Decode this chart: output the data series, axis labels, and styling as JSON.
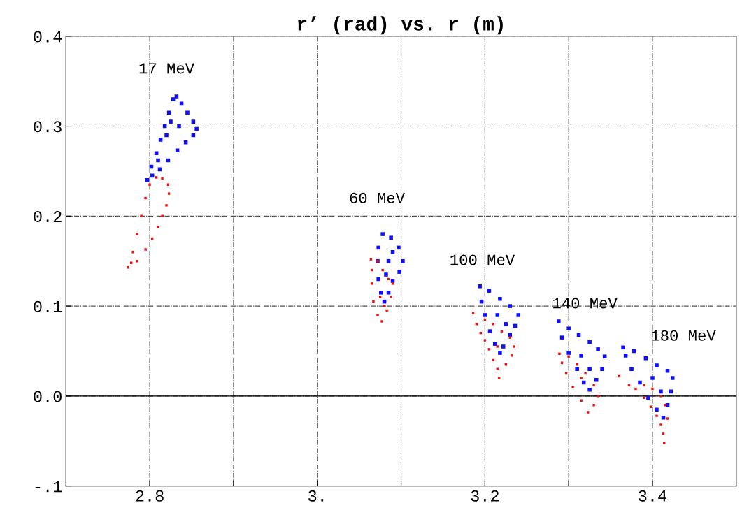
{
  "chart_data": {
    "type": "scatter",
    "title": "r’ (rad) vs. r (m)",
    "xlim": [
      2.7,
      3.5
    ],
    "ylim": [
      -0.1,
      0.4
    ],
    "xticks": [
      2.8,
      {
        "value": 2.9,
        "label": null
      },
      {
        "value": 3.0,
        "label": "3."
      },
      {
        "value": 3.1,
        "label": null
      },
      3.2,
      {
        "value": 3.3,
        "label": null
      },
      3.4
    ],
    "yticks": [
      {
        "value": -0.1,
        "label": "-.1"
      },
      {
        "value": 0.0,
        "label": "0.0"
      },
      0.1,
      0.2,
      0.3,
      0.4
    ],
    "grid": true,
    "marker": "square",
    "ref_lines": [
      {
        "axis": "y",
        "value": 0,
        "color": "#000000",
        "line_style": "solid"
      }
    ],
    "annotations": [
      "17 MeV",
      "60 MeV",
      "100 MeV",
      "140 MeV",
      "180 MeV"
    ],
    "series": [
      {
        "color": "#1010f0",
        "x": [
          2.797,
          2.802,
          2.808,
          2.813,
          2.818,
          2.823,
          2.828,
          2.832,
          2.838,
          2.845,
          2.852,
          2.856,
          2.852,
          2.843,
          2.833,
          2.822,
          2.812,
          2.803,
          2.825,
          2.835,
          2.82,
          2.81,
          3.078,
          3.088,
          3.097,
          3.102,
          3.098,
          3.09,
          3.085,
          3.08,
          3.076,
          3.073,
          3.072,
          3.073,
          3.085,
          3.09,
          3.082,
          3.194,
          3.205,
          3.218,
          3.23,
          3.24,
          3.236,
          3.23,
          3.222,
          3.218,
          3.212,
          3.206,
          3.2,
          3.196,
          3.215,
          3.225,
          3.288,
          3.3,
          3.312,
          3.325,
          3.335,
          3.343,
          3.34,
          3.333,
          3.325,
          3.318,
          3.31,
          3.3,
          3.292,
          3.315,
          3.325,
          3.365,
          3.378,
          3.392,
          3.405,
          3.418,
          3.424,
          3.422,
          3.418,
          3.413,
          3.405,
          3.395,
          3.385,
          3.375,
          3.368,
          3.4,
          3.41
        ],
        "values": [
          0.24,
          0.255,
          0.27,
          0.285,
          0.3,
          0.315,
          0.33,
          0.333,
          0.325,
          0.315,
          0.305,
          0.297,
          0.29,
          0.282,
          0.273,
          0.262,
          0.252,
          0.245,
          0.305,
          0.3,
          0.29,
          0.262,
          0.18,
          0.176,
          0.165,
          0.15,
          0.138,
          0.128,
          0.115,
          0.105,
          0.115,
          0.13,
          0.15,
          0.165,
          0.15,
          0.16,
          0.135,
          0.122,
          0.117,
          0.108,
          0.1,
          0.09,
          0.078,
          0.068,
          0.055,
          0.048,
          0.058,
          0.072,
          0.09,
          0.105,
          0.09,
          0.08,
          0.083,
          0.075,
          0.068,
          0.06,
          0.052,
          0.044,
          0.03,
          0.018,
          0.007,
          0.015,
          0.03,
          0.048,
          0.065,
          0.045,
          0.03,
          0.054,
          0.05,
          0.042,
          0.034,
          0.028,
          0.02,
          0.005,
          -0.01,
          -0.024,
          -0.015,
          -0.002,
          0.015,
          0.03,
          0.045,
          0.02,
          0.005
        ]
      },
      {
        "color": "#f01010",
        "x": [
          2.774,
          2.78,
          2.785,
          2.79,
          2.795,
          2.8,
          2.808,
          2.815,
          2.822,
          2.823,
          2.82,
          2.815,
          2.81,
          2.803,
          2.795,
          2.785,
          2.778,
          3.064,
          3.072,
          3.078,
          3.085,
          3.09,
          3.088,
          3.083,
          3.077,
          3.072,
          3.067,
          3.065,
          3.065,
          3.075,
          3.08,
          3.186,
          3.19,
          3.195,
          3.2,
          3.205,
          3.21,
          3.215,
          3.217,
          3.225,
          3.232,
          3.235,
          3.23,
          3.22,
          3.21,
          3.2,
          3.215,
          3.289,
          3.3,
          3.31,
          3.32,
          3.33,
          3.335,
          3.33,
          3.323,
          3.315,
          3.305,
          3.297,
          3.292,
          3.315,
          3.36,
          3.372,
          3.38,
          3.39,
          3.398,
          3.405,
          3.41,
          3.413,
          3.414,
          3.418,
          3.415,
          3.41,
          3.4,
          3.39
        ],
        "values": [
          0.143,
          0.16,
          0.18,
          0.2,
          0.22,
          0.235,
          0.243,
          0.242,
          0.235,
          0.225,
          0.212,
          0.2,
          0.188,
          0.175,
          0.163,
          0.15,
          0.148,
          0.152,
          0.15,
          0.14,
          0.13,
          0.125,
          0.11,
          0.095,
          0.083,
          0.09,
          0.105,
          0.125,
          0.14,
          0.11,
          0.1,
          0.092,
          0.08,
          0.07,
          0.062,
          0.052,
          0.04,
          0.03,
          0.02,
          0.035,
          0.045,
          0.055,
          0.065,
          0.072,
          0.08,
          0.085,
          0.055,
          0.047,
          0.044,
          0.035,
          0.025,
          0.012,
          0.0,
          -0.01,
          -0.018,
          -0.005,
          0.01,
          0.025,
          0.037,
          0.02,
          0.022,
          0.012,
          0.008,
          -0.002,
          -0.012,
          -0.022,
          -0.032,
          -0.042,
          -0.052,
          -0.025,
          -0.01,
          0.0,
          0.008,
          0.012
        ]
      }
    ]
  }
}
